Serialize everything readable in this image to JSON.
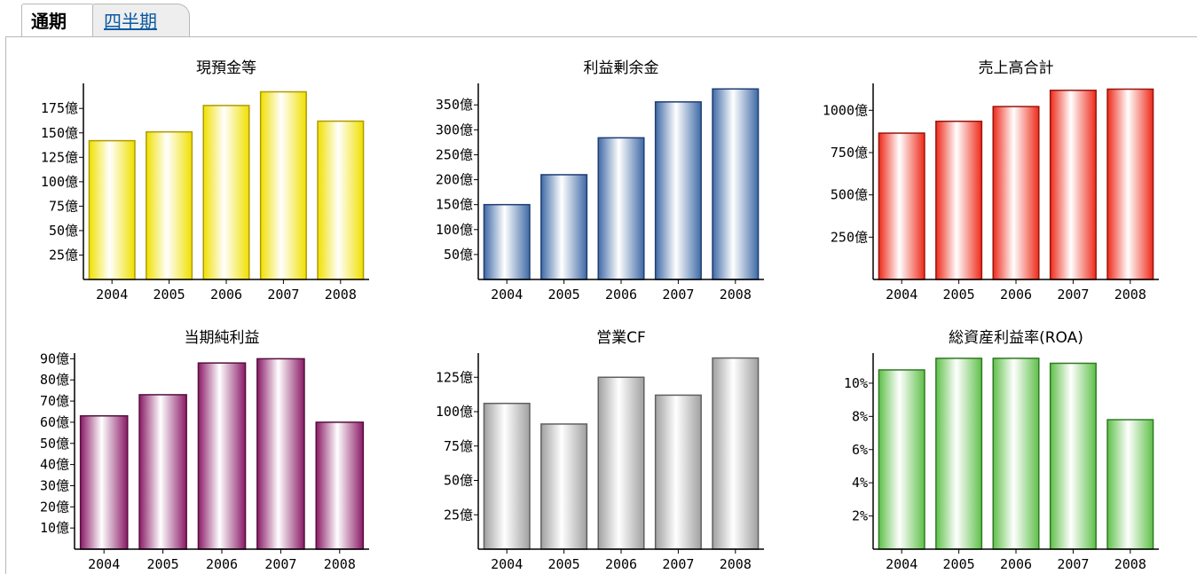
{
  "tabs": [
    {
      "label": "通期",
      "active": true
    },
    {
      "label": "四半期",
      "active": false
    }
  ],
  "chart_data": [
    {
      "type": "bar",
      "title": "現預金等",
      "categories": [
        "2004",
        "2005",
        "2006",
        "2007",
        "2008"
      ],
      "values": [
        142,
        151,
        178,
        192,
        162
      ],
      "yticks": [
        25,
        50,
        75,
        100,
        125,
        150,
        175
      ],
      "ytick_labels": [
        "25億",
        "50億",
        "75億",
        "100億",
        "125億",
        "150億",
        "175億"
      ],
      "ylim": [
        0,
        197
      ],
      "color": "#f0e000",
      "edge": "#b09a00",
      "grid": false
    },
    {
      "type": "bar",
      "title": "利益剰余金",
      "categories": [
        "2004",
        "2005",
        "2006",
        "2007",
        "2008"
      ],
      "values": [
        150,
        210,
        284,
        356,
        382
      ],
      "yticks": [
        50,
        100,
        150,
        200,
        250,
        300,
        350
      ],
      "ytick_labels": [
        "50億",
        "100億",
        "150億",
        "200億",
        "250億",
        "300億",
        "350億"
      ],
      "ylim": [
        0,
        386
      ],
      "color": "#3f6aa6",
      "edge": "#1e3e73",
      "grid": false
    },
    {
      "type": "bar",
      "title": "売上高合計",
      "categories": [
        "2004",
        "2005",
        "2006",
        "2007",
        "2008"
      ],
      "values": [
        865,
        935,
        1022,
        1118,
        1125
      ],
      "yticks": [
        250,
        500,
        750,
        1000
      ],
      "ytick_labels": [
        "250億",
        "500億",
        "750億",
        "1000億"
      ],
      "ylim": [
        0,
        1138
      ],
      "color": "#ee2a1a",
      "edge": "#9a140c",
      "grid": false
    },
    {
      "type": "bar",
      "title": "当期純利益",
      "categories": [
        "2004",
        "2005",
        "2006",
        "2007",
        "2008"
      ],
      "values": [
        63,
        73,
        88,
        90,
        60
      ],
      "yticks": [
        10,
        20,
        30,
        40,
        50,
        60,
        70,
        80,
        90
      ],
      "ytick_labels": [
        "10億",
        "20億",
        "30億",
        "40億",
        "50億",
        "60億",
        "70億",
        "80億",
        "90億"
      ],
      "ylim": [
        0,
        91
      ],
      "color": "#8a1a66",
      "edge": "#55103f",
      "grid": false
    },
    {
      "type": "bar",
      "title": "営業CF",
      "categories": [
        "2004",
        "2005",
        "2006",
        "2007",
        "2008"
      ],
      "values": [
        106,
        91,
        125,
        112,
        139
      ],
      "yticks": [
        25,
        50,
        75,
        100,
        125
      ],
      "ytick_labels": [
        "25億",
        "50億",
        "75億",
        "100億",
        "125億"
      ],
      "ylim": [
        0,
        140
      ],
      "color": "#a0a0a0",
      "edge": "#606060",
      "grid": false
    },
    {
      "type": "bar",
      "title": "総資産利益率(ROA)",
      "categories": [
        "2004",
        "2005",
        "2006",
        "2007",
        "2008"
      ],
      "values": [
        10.8,
        11.5,
        11.5,
        11.2,
        7.8
      ],
      "yticks": [
        2,
        4,
        6,
        8,
        10
      ],
      "ytick_labels": [
        "2%",
        "4%",
        "6%",
        "8%",
        "10%"
      ],
      "ylim": [
        0,
        11.6
      ],
      "color": "#5fc04a",
      "edge": "#2f7a22",
      "grid": false
    }
  ]
}
